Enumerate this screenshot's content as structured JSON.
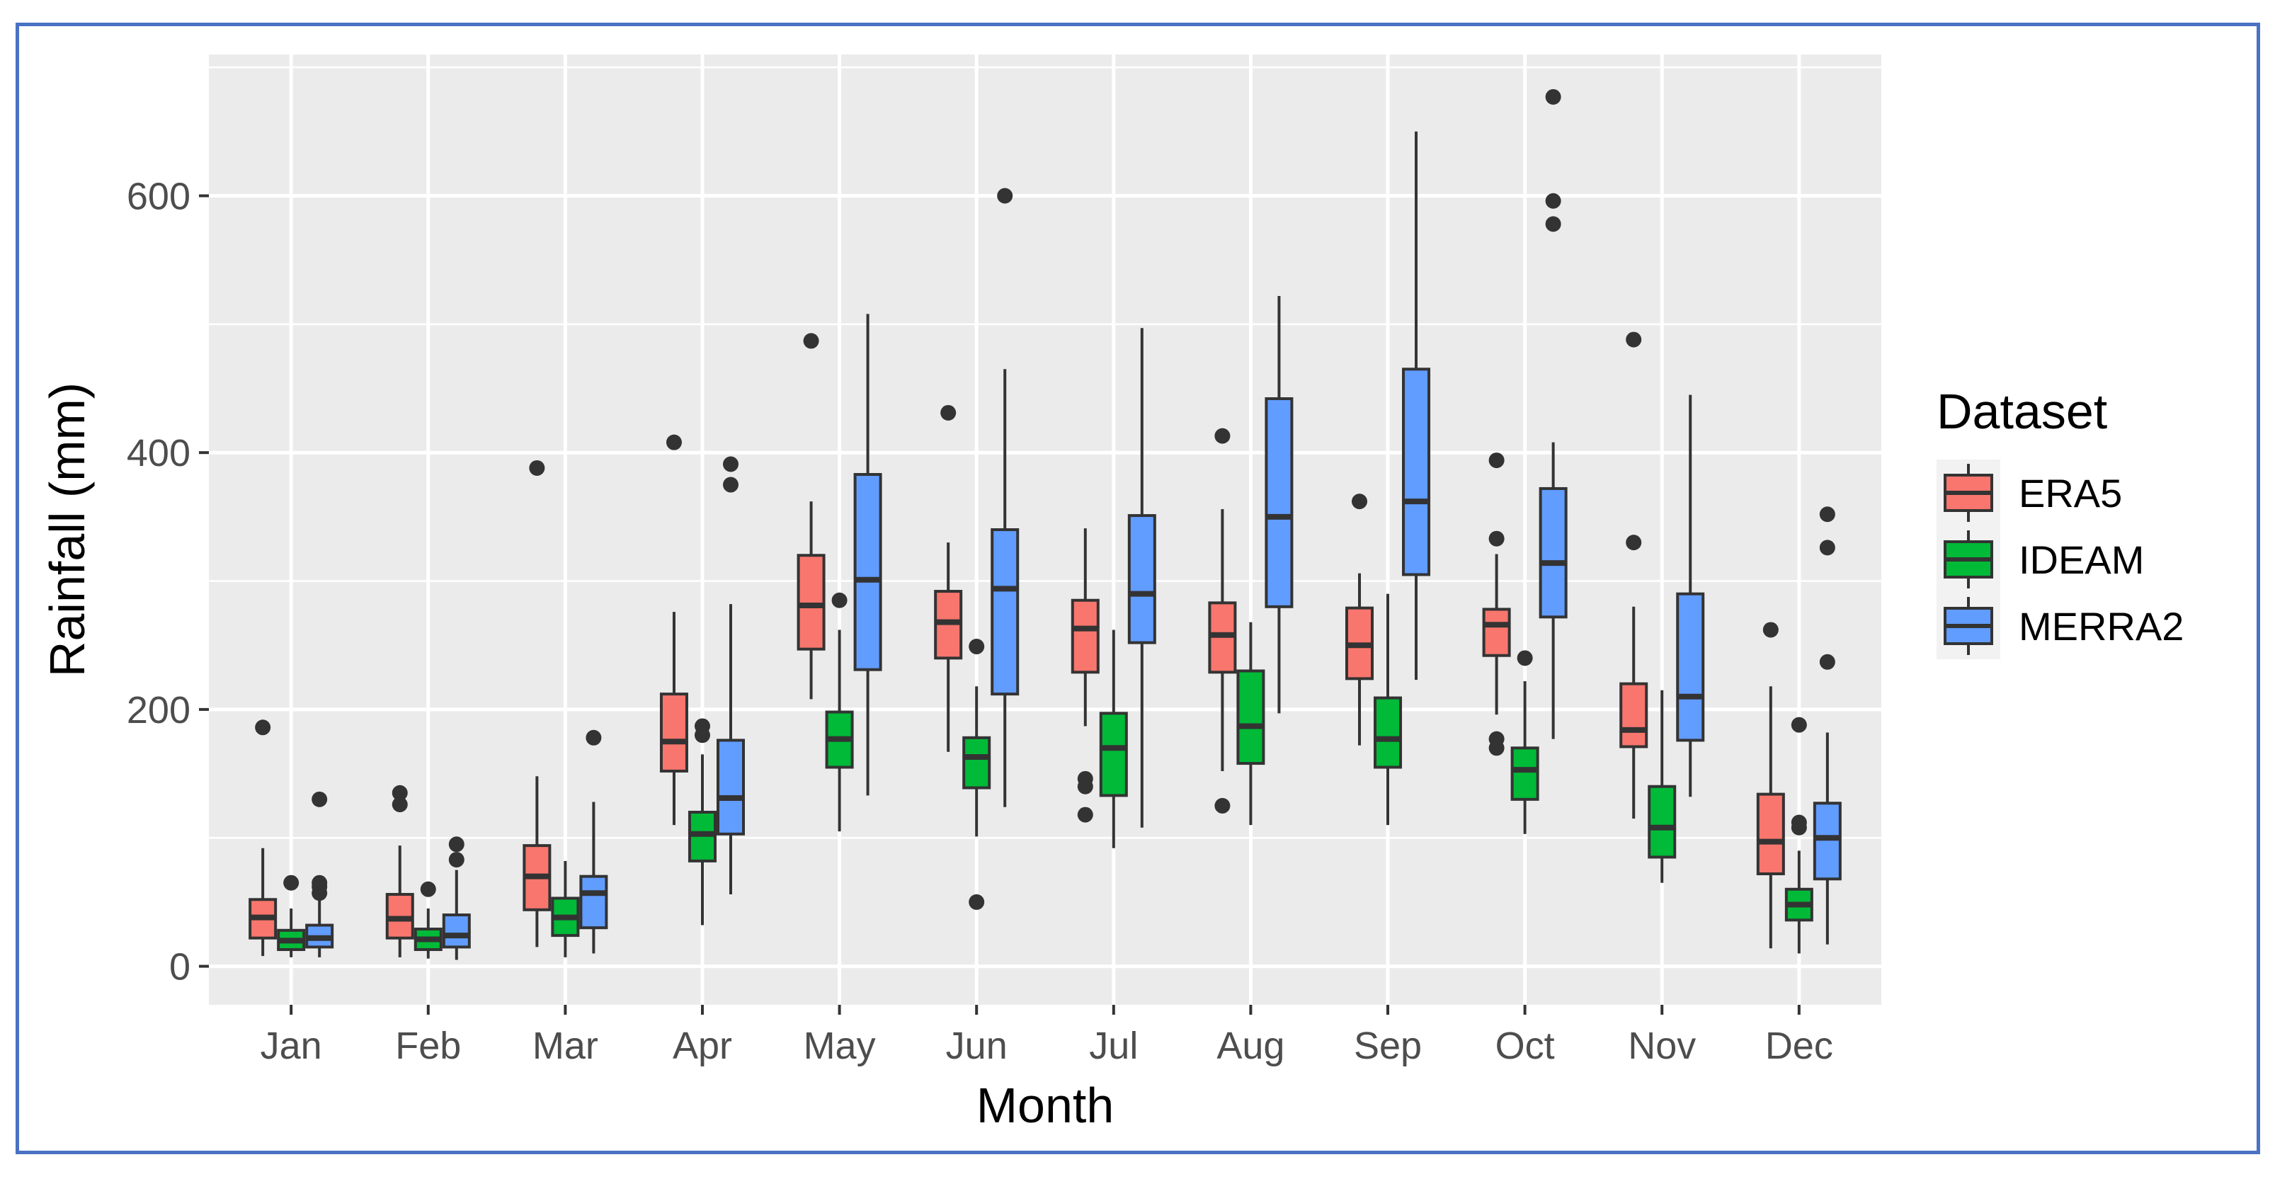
{
  "chart_data": {
    "type": "boxplot",
    "xlabel": "Month",
    "ylabel": "Rainfall (mm)",
    "ylim": [
      -30,
      710
    ],
    "yticks": [
      0,
      200,
      400,
      600
    ],
    "categories": [
      "Jan",
      "Feb",
      "Mar",
      "Apr",
      "May",
      "Jun",
      "Jul",
      "Aug",
      "Sep",
      "Oct",
      "Nov",
      "Dec"
    ],
    "legend": {
      "title": "Dataset",
      "position": "right"
    },
    "grid": true,
    "series": [
      {
        "name": "ERA5",
        "color": "#f8766d",
        "boxes": [
          {
            "min": 8,
            "q1": 22,
            "median": 38,
            "q3": 52,
            "max": 92,
            "outliers": [
              186
            ]
          },
          {
            "min": 7,
            "q1": 22,
            "median": 37,
            "q3": 56,
            "max": 94,
            "outliers": [
              126,
              135
            ]
          },
          {
            "min": 15,
            "q1": 44,
            "median": 70,
            "q3": 94,
            "max": 148,
            "outliers": [
              388
            ]
          },
          {
            "min": 110,
            "q1": 152,
            "median": 175,
            "q3": 212,
            "max": 276,
            "outliers": [
              408
            ]
          },
          {
            "min": 208,
            "q1": 247,
            "median": 281,
            "q3": 320,
            "max": 362,
            "outliers": [
              487
            ]
          },
          {
            "min": 167,
            "q1": 240,
            "median": 268,
            "q3": 292,
            "max": 330,
            "outliers": [
              431
            ]
          },
          {
            "min": 187,
            "q1": 229,
            "median": 263,
            "q3": 285,
            "max": 341,
            "outliers": [
              118,
              140,
              146
            ]
          },
          {
            "min": 152,
            "q1": 229,
            "median": 258,
            "q3": 283,
            "max": 356,
            "outliers": [
              125,
              413
            ]
          },
          {
            "min": 172,
            "q1": 224,
            "median": 250,
            "q3": 279,
            "max": 306,
            "outliers": [
              362
            ]
          },
          {
            "min": 196,
            "q1": 242,
            "median": 266,
            "q3": 278,
            "max": 321,
            "outliers": [
              170,
              177,
              333,
              394
            ]
          },
          {
            "min": 115,
            "q1": 171,
            "median": 184,
            "q3": 220,
            "max": 280,
            "outliers": [
              330,
              488
            ]
          },
          {
            "min": 14,
            "q1": 72,
            "median": 97,
            "q3": 134,
            "max": 218,
            "outliers": [
              262
            ]
          }
        ]
      },
      {
        "name": "IDEAM",
        "color": "#00ba38",
        "boxes": [
          {
            "min": 7,
            "q1": 13,
            "median": 20,
            "q3": 28,
            "max": 45,
            "outliers": [
              65
            ]
          },
          {
            "min": 6,
            "q1": 13,
            "median": 21,
            "q3": 29,
            "max": 45,
            "outliers": [
              60
            ]
          },
          {
            "min": 7,
            "q1": 24,
            "median": 38,
            "q3": 53,
            "max": 82,
            "outliers": []
          },
          {
            "min": 32,
            "q1": 82,
            "median": 103,
            "q3": 120,
            "max": 165,
            "outliers": [
              180,
              187
            ]
          },
          {
            "min": 105,
            "q1": 155,
            "median": 177,
            "q3": 198,
            "max": 262,
            "outliers": [
              285
            ]
          },
          {
            "min": 101,
            "q1": 139,
            "median": 163,
            "q3": 178,
            "max": 218,
            "outliers": [
              50,
              249
            ]
          },
          {
            "min": 92,
            "q1": 133,
            "median": 170,
            "q3": 197,
            "max": 262,
            "outliers": []
          },
          {
            "min": 110,
            "q1": 158,
            "median": 187,
            "q3": 230,
            "max": 268,
            "outliers": []
          },
          {
            "min": 110,
            "q1": 155,
            "median": 177,
            "q3": 209,
            "max": 290,
            "outliers": []
          },
          {
            "min": 103,
            "q1": 130,
            "median": 153,
            "q3": 170,
            "max": 222,
            "outliers": [
              240
            ]
          },
          {
            "min": 65,
            "q1": 85,
            "median": 108,
            "q3": 140,
            "max": 215,
            "outliers": []
          },
          {
            "min": 10,
            "q1": 36,
            "median": 48,
            "q3": 60,
            "max": 90,
            "outliers": [
              108,
              112,
              188
            ]
          }
        ]
      },
      {
        "name": "MERRA2",
        "color": "#619cff",
        "boxes": [
          {
            "min": 7,
            "q1": 15,
            "median": 22,
            "q3": 32,
            "max": 55,
            "outliers": [
              57,
              62,
              65,
              130
            ]
          },
          {
            "min": 5,
            "q1": 15,
            "median": 24,
            "q3": 40,
            "max": 75,
            "outliers": [
              83,
              95
            ]
          },
          {
            "min": 10,
            "q1": 30,
            "median": 57,
            "q3": 70,
            "max": 128,
            "outliers": [
              178
            ]
          },
          {
            "min": 56,
            "q1": 103,
            "median": 131,
            "q3": 176,
            "max": 282,
            "outliers": [
              375,
              391
            ]
          },
          {
            "min": 133,
            "q1": 231,
            "median": 301,
            "q3": 383,
            "max": 508,
            "outliers": []
          },
          {
            "min": 124,
            "q1": 212,
            "median": 294,
            "q3": 340,
            "max": 465,
            "outliers": [
              600
            ]
          },
          {
            "min": 108,
            "q1": 252,
            "median": 290,
            "q3": 351,
            "max": 497,
            "outliers": []
          },
          {
            "min": 197,
            "q1": 280,
            "median": 350,
            "q3": 442,
            "max": 522,
            "outliers": []
          },
          {
            "min": 223,
            "q1": 305,
            "median": 362,
            "q3": 465,
            "max": 650,
            "outliers": []
          },
          {
            "min": 177,
            "q1": 272,
            "median": 314,
            "q3": 372,
            "max": 408,
            "outliers": [
              578,
              596,
              677
            ]
          },
          {
            "min": 132,
            "q1": 176,
            "median": 210,
            "q3": 290,
            "max": 445,
            "outliers": []
          },
          {
            "min": 17,
            "q1": 68,
            "median": 100,
            "q3": 127,
            "max": 182,
            "outliers": [
              237,
              326,
              352
            ]
          }
        ]
      }
    ]
  }
}
